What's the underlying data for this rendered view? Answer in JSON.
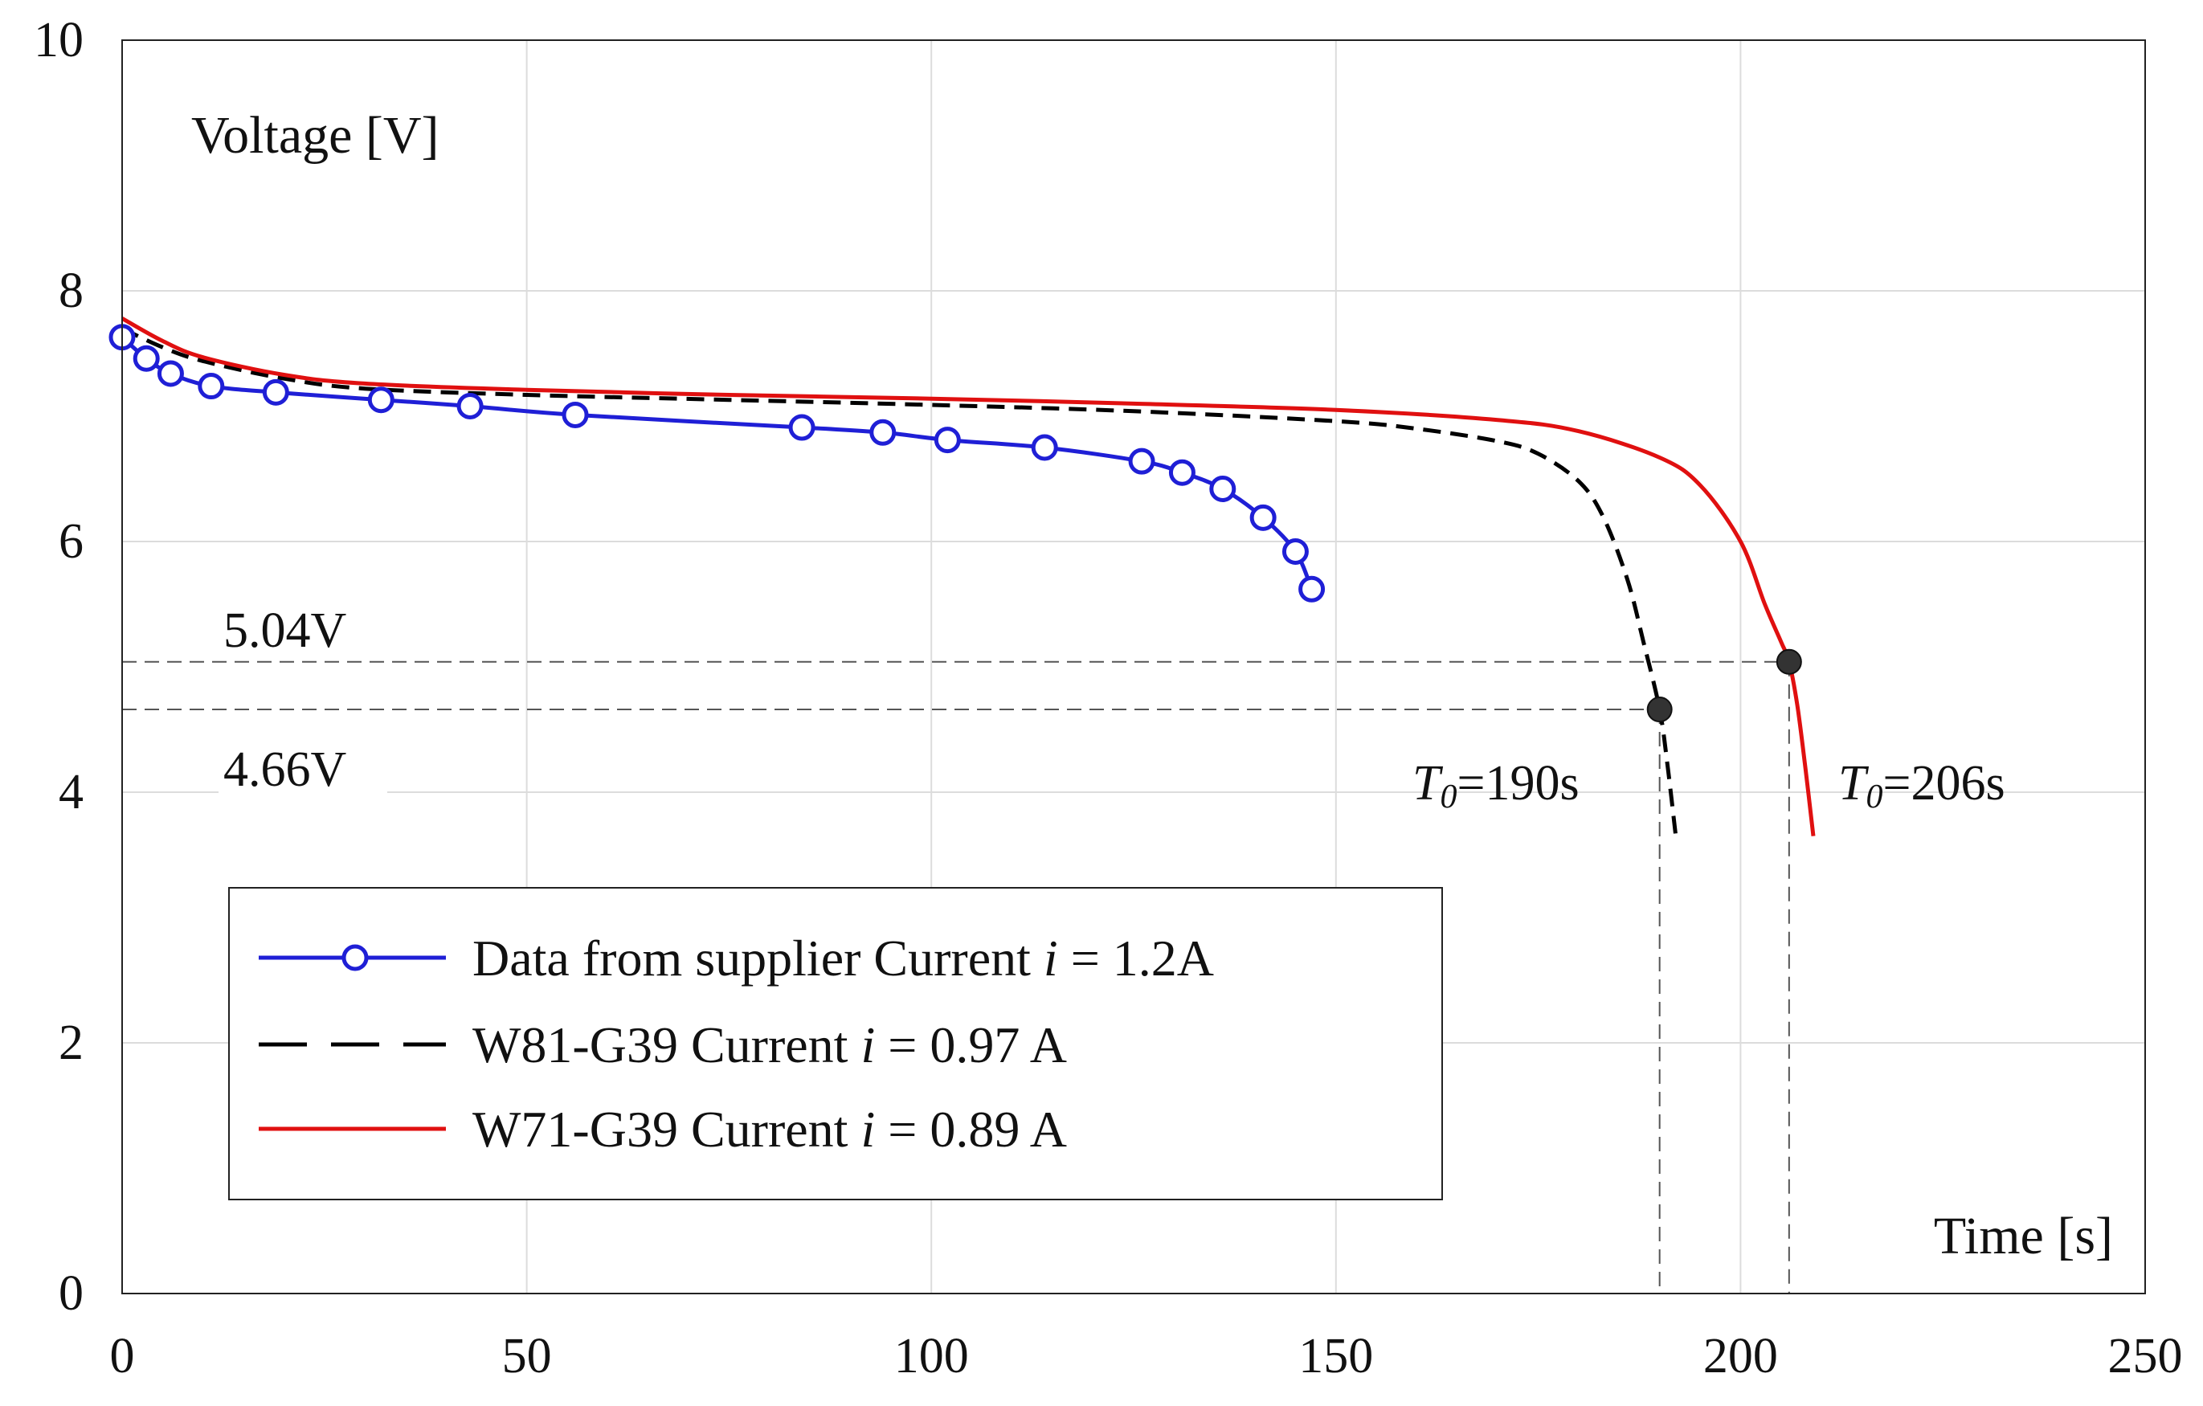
{
  "chart_data": {
    "type": "line",
    "xlabel": "Time [s]",
    "ylabel": "Voltage [V]",
    "xlim": [
      0,
      250
    ],
    "ylim": [
      0,
      10
    ],
    "xticks": [
      "0",
      "50",
      "100",
      "150",
      "200",
      "250"
    ],
    "yticks": [
      "0",
      "2",
      "4",
      "6",
      "8",
      "10"
    ],
    "grid": true,
    "legend_position": "lower-left",
    "series": [
      {
        "name": "Data from supplier Current",
        "legend_symbol": "i",
        "legend_value": " = 1.2A",
        "color": "#1f1fd6",
        "style": "solid-circle",
        "x": [
          0,
          3,
          6,
          11,
          19,
          32,
          43,
          56,
          84,
          94,
          102,
          114,
          126,
          131,
          136,
          141,
          145,
          147
        ],
        "y": [
          7.63,
          7.46,
          7.34,
          7.24,
          7.19,
          7.13,
          7.08,
          7.01,
          6.91,
          6.87,
          6.81,
          6.75,
          6.64,
          6.55,
          6.42,
          6.19,
          5.92,
          5.62
        ]
      },
      {
        "name": "W81-G39 Current",
        "legend_symbol": "i",
        "legend_value": " = 0.97 A",
        "color": "#000000",
        "style": "dashed",
        "x": [
          0,
          5,
          10,
          20,
          30,
          50,
          75,
          100,
          125,
          150,
          160,
          170,
          175,
          180,
          183,
          186,
          188,
          190,
          191,
          192
        ],
        "y": [
          7.7,
          7.55,
          7.44,
          7.3,
          7.22,
          7.17,
          7.13,
          7.09,
          7.04,
          6.96,
          6.9,
          6.8,
          6.7,
          6.48,
          6.2,
          5.7,
          5.2,
          4.66,
          4.2,
          3.65
        ]
      },
      {
        "name": "W71-G39 Current",
        "legend_symbol": "i",
        "legend_value": " = 0.89 A",
        "color": "#e01010",
        "style": "solid",
        "x": [
          0,
          5,
          10,
          20,
          30,
          50,
          75,
          100,
          125,
          150,
          170,
          180,
          190,
          195,
          200,
          203,
          205,
          206,
          207,
          208,
          209
        ],
        "y": [
          7.78,
          7.6,
          7.47,
          7.33,
          7.26,
          7.21,
          7.17,
          7.14,
          7.1,
          7.05,
          6.97,
          6.88,
          6.67,
          6.45,
          6.0,
          5.5,
          5.2,
          5.04,
          4.7,
          4.2,
          3.65
        ]
      }
    ],
    "annotations": {
      "ref_high": {
        "label": "5.04V",
        "value": 5.04
      },
      "ref_low": {
        "label": "4.66V",
        "value": 4.66
      },
      "cutoff_1": {
        "prefix": "T",
        "sub": "0",
        "text": "=190s",
        "x": 190,
        "y": 4.66
      },
      "cutoff_2": {
        "prefix": "T",
        "sub": "0",
        "text": "=206s",
        "x": 206,
        "y": 5.04
      }
    }
  }
}
